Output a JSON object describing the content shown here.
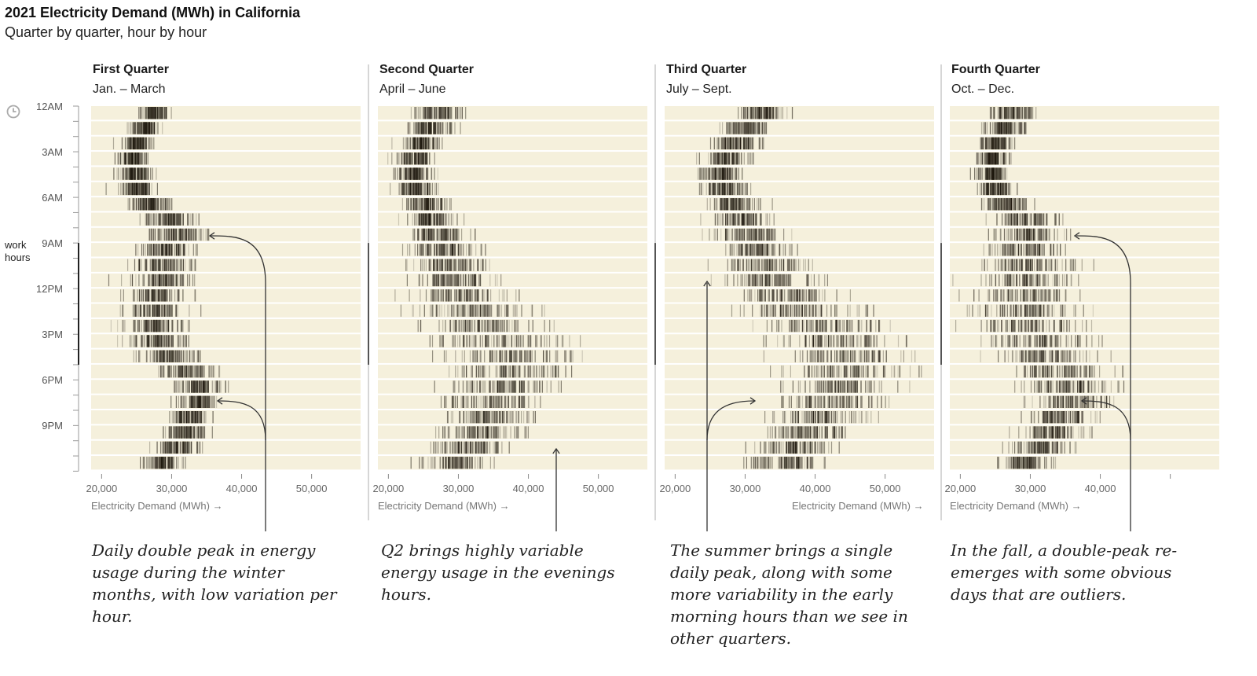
{
  "title": "2021 Electricity Demand (MWh) in California",
  "subtitle": "Quarter by quarter, hour by hour",
  "y_axis": {
    "labels": [
      "12AM",
      "3AM",
      "6AM",
      "9AM",
      "12PM",
      "3PM",
      "6PM",
      "9PM"
    ],
    "work_hours_label_line1": "work",
    "work_hours_label_line2": "hours",
    "clock_icon": "clock-icon"
  },
  "annotations": [
    "Daily double peak in energy usage during the winter months, with low variation per hour.",
    "Q2 brings highly variable energy usage in the evenings hours.",
    "The summer brings a single daily peak, along with some more variability in the early morning hours than we see in other quarters.",
    "In the fall, a double-peak re-emerges with some obvious days that are outliers."
  ],
  "colors": {
    "band": "#f5f0dc",
    "mark": "#1a140a",
    "axis": "#888888",
    "annotation_line": "#333333"
  },
  "chart_data": {
    "type": "strip",
    "title": "2021 Electricity Demand (MWh) in California",
    "subtitle": "Quarter by quarter, hour by hour",
    "xlabel": "Electricity Demand (MWh) →",
    "xlim": [
      18500,
      57000
    ],
    "xticks": [
      20000,
      30000,
      40000,
      50000
    ],
    "xtick_labels": [
      "20,000",
      "30,000",
      "40,000",
      "50,000"
    ],
    "hours": [
      0,
      1,
      2,
      3,
      4,
      5,
      6,
      7,
      8,
      9,
      10,
      11,
      12,
      13,
      14,
      15,
      16,
      17,
      18,
      19,
      20,
      21,
      22,
      23
    ],
    "panels": [
      {
        "name": "First Quarter",
        "months": "Jan. – March",
        "xtick_labels_shown": [
          "20,000",
          "30,000",
          "40,000",
          "50,000"
        ],
        "hourly_median": [
          27500,
          26000,
          24800,
          24300,
          24500,
          25000,
          26800,
          29500,
          30500,
          29000,
          28500,
          28200,
          27800,
          27500,
          27500,
          28000,
          29000,
          32000,
          33500,
          33500,
          32500,
          32000,
          30500,
          28500
        ],
        "hourly_spread": [
          2000,
          1800,
          1700,
          1700,
          1800,
          2000,
          2500,
          3000,
          3500,
          3500,
          3500,
          3500,
          3600,
          3600,
          3600,
          3500,
          3400,
          3500,
          3000,
          2500,
          2400,
          2500,
          2400,
          2200
        ]
      },
      {
        "name": "Second Quarter",
        "months": "April – June",
        "xtick_labels_shown": [
          "20,000",
          "30,000",
          "40,000",
          "50,000"
        ],
        "hourly_median": [
          27000,
          25500,
          24500,
          23700,
          23500,
          23800,
          25000,
          26000,
          27000,
          27500,
          28000,
          29000,
          30000,
          31500,
          33000,
          35000,
          37500,
          37500,
          36000,
          34500,
          34000,
          33000,
          31000,
          29000
        ],
        "hourly_spread": [
          3000,
          2600,
          2400,
          2300,
          2300,
          2300,
          2600,
          3000,
          3500,
          3800,
          4200,
          5000,
          6000,
          7000,
          7500,
          8000,
          8000,
          7500,
          6500,
          5500,
          5000,
          4800,
          4500,
          4000
        ]
      },
      {
        "name": "Third Quarter",
        "months": "July – Sept.",
        "xtick_labels_shown": [
          "20,000",
          "30,000",
          "40,000",
          "50,000"
        ],
        "hourly_median": [
          32500,
          30000,
          28500,
          27000,
          26500,
          26500,
          28000,
          29500,
          30500,
          31500,
          32500,
          33500,
          35500,
          37500,
          40000,
          42500,
          44000,
          44000,
          43000,
          42000,
          40500,
          38500,
          37000,
          35500
        ],
        "hourly_spread": [
          3000,
          2800,
          2700,
          2600,
          2600,
          2800,
          3200,
          3500,
          4000,
          4500,
          5000,
          5500,
          6000,
          6500,
          7000,
          7500,
          7500,
          7500,
          6800,
          6000,
          5500,
          5000,
          4800,
          4500
        ]
      },
      {
        "name": "Fourth Quarter",
        "months": "Oct. – Dec.",
        "xtick_labels_shown": [
          "20,000",
          "30,000",
          "40,000"
        ],
        "hourly_median": [
          27500,
          26000,
          25000,
          24300,
          24300,
          25000,
          26500,
          29000,
          29500,
          29000,
          29000,
          29000,
          29000,
          29000,
          29500,
          30500,
          32000,
          34000,
          35000,
          35000,
          34000,
          33000,
          31000,
          29000
        ],
        "hourly_spread": [
          2800,
          2300,
          2000,
          1900,
          2000,
          2200,
          2700,
          3500,
          4000,
          4500,
          5500,
          6000,
          6500,
          6500,
          6500,
          6500,
          6000,
          6000,
          5000,
          4500,
          4200,
          4000,
          3600,
          3200
        ]
      }
    ]
  }
}
